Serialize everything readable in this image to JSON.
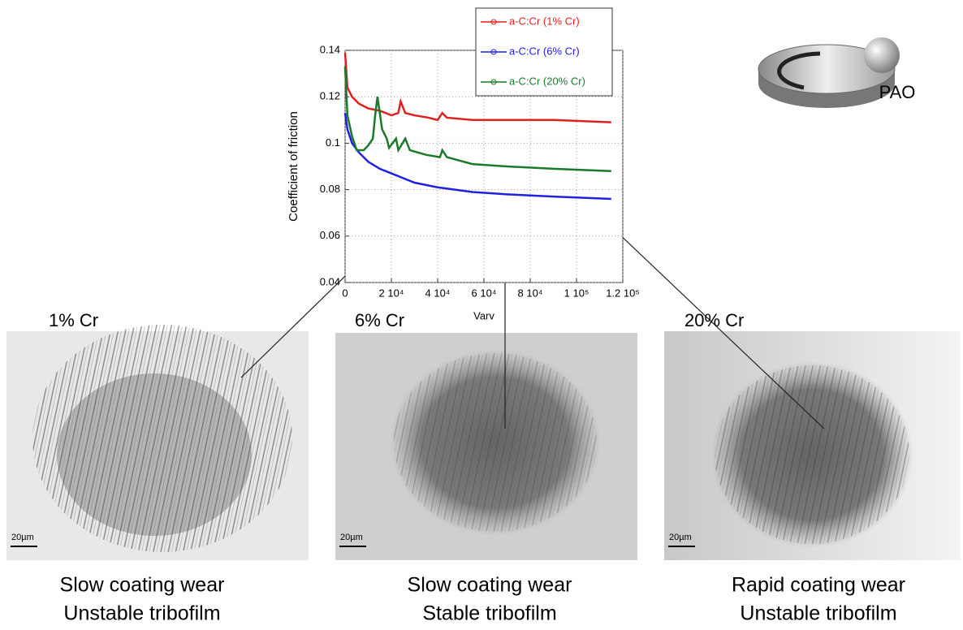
{
  "chart_data": {
    "type": "line",
    "x_label": "Varv",
    "y_label": "Coefficient of friction",
    "xlim": [
      0,
      120000
    ],
    "ylim": [
      0.04,
      0.14
    ],
    "xticks": [
      0,
      {
        "value": 20000,
        "label": "2 10⁴"
      },
      {
        "value": 40000,
        "label": "4 10⁴"
      },
      {
        "value": 60000,
        "label": "6 10⁴"
      },
      {
        "value": 80000,
        "label": "8 10⁴"
      },
      {
        "value": 100000,
        "label": "1 10⁵"
      },
      {
        "value": 120000,
        "label": "1.2 10⁵"
      }
    ],
    "yticks": [
      0.04,
      0.06,
      0.08,
      0.1,
      0.12,
      0.14
    ],
    "grid": true,
    "legend": "top-right",
    "series": [
      {
        "name": "a-C:Cr (1% Cr)",
        "color": "#e02020",
        "x": [
          0,
          1000,
          3000,
          6000,
          10000,
          15000,
          20000,
          23000,
          24000,
          26000,
          30000,
          36000,
          40000,
          42000,
          44000,
          55000,
          70000,
          90000,
          115000
        ],
        "values": [
          0.139,
          0.124,
          0.12,
          0.117,
          0.115,
          0.114,
          0.112,
          0.113,
          0.118,
          0.113,
          0.112,
          0.111,
          0.11,
          0.113,
          0.111,
          0.11,
          0.11,
          0.11,
          0.109
        ]
      },
      {
        "name": "a-C:Cr (6% Cr)",
        "color": "#2020e0",
        "x": [
          0,
          1000,
          3000,
          6000,
          10000,
          15000,
          20000,
          30000,
          40000,
          55000,
          70000,
          90000,
          115000
        ],
        "values": [
          0.113,
          0.106,
          0.1,
          0.096,
          0.092,
          0.089,
          0.087,
          0.083,
          0.081,
          0.079,
          0.078,
          0.077,
          0.076
        ]
      },
      {
        "name": "a-C:Cr (20% Cr)",
        "color": "#1a7a2a",
        "x": [
          0,
          1000,
          3000,
          5000,
          8000,
          10000,
          12000,
          13000,
          14000,
          16000,
          18000,
          19000,
          22000,
          23000,
          26000,
          28000,
          35000,
          41000,
          42000,
          44000,
          55000,
          70000,
          90000,
          115000
        ],
        "values": [
          0.133,
          0.112,
          0.103,
          0.097,
          0.097,
          0.099,
          0.102,
          0.112,
          0.12,
          0.106,
          0.102,
          0.098,
          0.102,
          0.097,
          0.102,
          0.097,
          0.095,
          0.094,
          0.097,
          0.094,
          0.091,
          0.09,
          0.089,
          0.088
        ]
      }
    ]
  },
  "icon_label": "PAO",
  "panels": [
    {
      "label": "1% Cr",
      "scale": "20µm",
      "caption": [
        "Slow coating wear",
        "Unstable tribofilm"
      ]
    },
    {
      "label": "6% Cr",
      "scale": "20µm",
      "caption": [
        "Slow coating wear",
        "Stable tribofilm"
      ]
    },
    {
      "label": "20% Cr",
      "scale": "20µm",
      "caption": [
        "Rapid coating wear",
        "Unstable tribofilm"
      ]
    }
  ]
}
